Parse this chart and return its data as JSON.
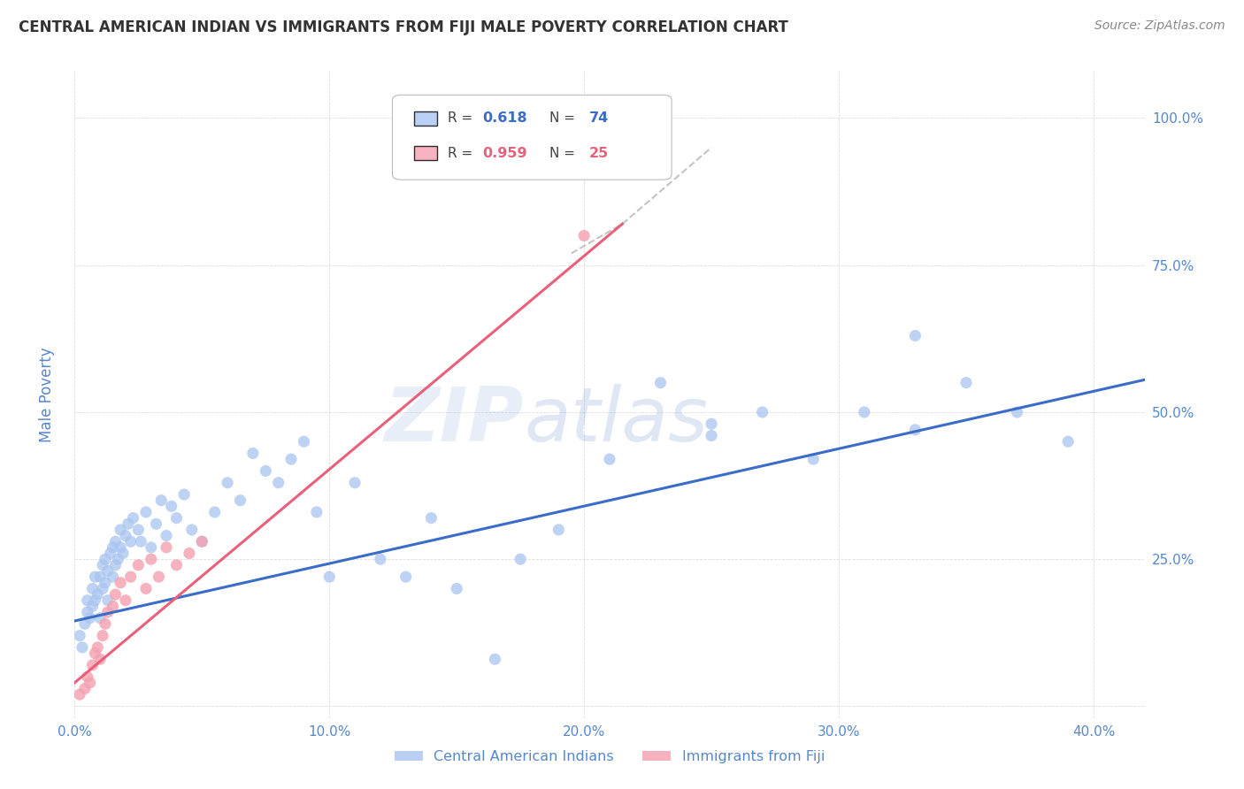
{
  "title": "CENTRAL AMERICAN INDIAN VS IMMIGRANTS FROM FIJI MALE POVERTY CORRELATION CHART",
  "source": "Source: ZipAtlas.com",
  "ylabel": "Male Poverty",
  "xlim": [
    0.0,
    0.42
  ],
  "ylim": [
    -0.02,
    1.08
  ],
  "xticks": [
    0.0,
    0.1,
    0.2,
    0.3,
    0.4
  ],
  "yticks": [
    0.0,
    0.25,
    0.5,
    0.75,
    1.0
  ],
  "xticklabels": [
    "0.0%",
    "10.0%",
    "20.0%",
    "30.0%",
    "40.0%"
  ],
  "yticklabels_right": [
    "",
    "25.0%",
    "50.0%",
    "75.0%",
    "100.0%"
  ],
  "background_color": "#ffffff",
  "grid_color": "#dddddd",
  "watermark_zip": "ZIP",
  "watermark_atlas": "atlas",
  "legend_r1": "0.618",
  "legend_n1": "74",
  "legend_r2": "0.959",
  "legend_n2": "25",
  "blue_color": "#a8c4f0",
  "pink_color": "#f4a0b0",
  "blue_line_color": "#3a6cc8",
  "pink_line_color": "#e8607a",
  "axis_tick_color": "#5588cc",
  "ylabel_color": "#5588cc",
  "title_color": "#333333",
  "source_color": "#888888",
  "legend_text_color": "#444444",
  "blue_scatter_x": [
    0.002,
    0.003,
    0.004,
    0.005,
    0.005,
    0.006,
    0.007,
    0.007,
    0.008,
    0.008,
    0.009,
    0.01,
    0.01,
    0.011,
    0.011,
    0.012,
    0.012,
    0.013,
    0.013,
    0.014,
    0.015,
    0.015,
    0.016,
    0.016,
    0.017,
    0.018,
    0.018,
    0.019,
    0.02,
    0.021,
    0.022,
    0.023,
    0.025,
    0.026,
    0.028,
    0.03,
    0.032,
    0.034,
    0.036,
    0.038,
    0.04,
    0.043,
    0.046,
    0.05,
    0.055,
    0.06,
    0.065,
    0.07,
    0.075,
    0.08,
    0.085,
    0.09,
    0.095,
    0.1,
    0.11,
    0.12,
    0.13,
    0.14,
    0.15,
    0.165,
    0.175,
    0.19,
    0.21,
    0.23,
    0.25,
    0.27,
    0.29,
    0.31,
    0.33,
    0.35,
    0.37,
    0.39,
    0.33,
    0.25
  ],
  "blue_scatter_y": [
    0.12,
    0.1,
    0.14,
    0.16,
    0.18,
    0.15,
    0.17,
    0.2,
    0.18,
    0.22,
    0.19,
    0.15,
    0.22,
    0.2,
    0.24,
    0.21,
    0.25,
    0.18,
    0.23,
    0.26,
    0.22,
    0.27,
    0.24,
    0.28,
    0.25,
    0.27,
    0.3,
    0.26,
    0.29,
    0.31,
    0.28,
    0.32,
    0.3,
    0.28,
    0.33,
    0.27,
    0.31,
    0.35,
    0.29,
    0.34,
    0.32,
    0.36,
    0.3,
    0.28,
    0.33,
    0.38,
    0.35,
    0.43,
    0.4,
    0.38,
    0.42,
    0.45,
    0.33,
    0.22,
    0.38,
    0.25,
    0.22,
    0.32,
    0.2,
    0.08,
    0.25,
    0.3,
    0.42,
    0.55,
    0.48,
    0.5,
    0.42,
    0.5,
    0.47,
    0.55,
    0.5,
    0.45,
    0.63,
    0.46
  ],
  "pink_scatter_x": [
    0.002,
    0.004,
    0.005,
    0.006,
    0.007,
    0.008,
    0.009,
    0.01,
    0.011,
    0.012,
    0.013,
    0.015,
    0.016,
    0.018,
    0.02,
    0.022,
    0.025,
    0.028,
    0.03,
    0.033,
    0.036,
    0.04,
    0.045,
    0.05,
    0.2
  ],
  "pink_scatter_y": [
    0.02,
    0.03,
    0.05,
    0.04,
    0.07,
    0.09,
    0.1,
    0.08,
    0.12,
    0.14,
    0.16,
    0.17,
    0.19,
    0.21,
    0.18,
    0.22,
    0.24,
    0.2,
    0.25,
    0.22,
    0.27,
    0.24,
    0.26,
    0.28,
    0.8
  ],
  "blue_line_x": [
    0.0,
    0.42
  ],
  "blue_line_y": [
    0.145,
    0.555
  ],
  "pink_line_x": [
    0.0,
    0.215
  ],
  "pink_line_y": [
    0.04,
    0.82
  ]
}
